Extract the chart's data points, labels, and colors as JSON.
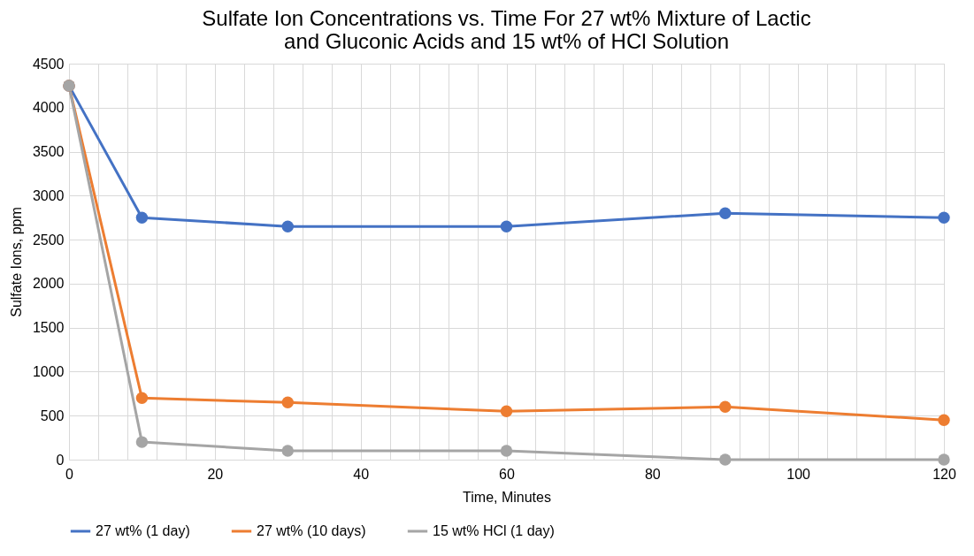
{
  "chart_data": {
    "type": "line",
    "title": "Sulfate Ion Concentrations vs. Time For 27 wt% Mixture of Lactic and Gluconic Acids and 15 wt% of HCl Solution",
    "xlabel": "Time, Minutes",
    "ylabel": "Sulfate Ions, ppm",
    "x": [
      0,
      10,
      30,
      60,
      90,
      120
    ],
    "series": [
      {
        "name": "27 wt% (1 day)",
        "color": "#4472c4",
        "values": [
          4250,
          2750,
          2650,
          2650,
          2800,
          2750
        ]
      },
      {
        "name": "27 wt% (10 days)",
        "color": "#ed7d31",
        "values": [
          4250,
          700,
          650,
          550,
          600,
          450
        ]
      },
      {
        "name": "15 wt% HCl (1 day)",
        "color": "#a5a5a5",
        "values": [
          4250,
          200,
          100,
          100,
          0,
          0
        ]
      }
    ],
    "xlim": [
      0,
      120
    ],
    "ylim": [
      0,
      4500
    ],
    "xticks": [
      0,
      {
        "value": 4,
        "label": null
      },
      {
        "value": 8,
        "label": null
      },
      {
        "value": 12,
        "label": null
      },
      {
        "value": 16,
        "label": null
      },
      20,
      {
        "value": 24,
        "label": null
      },
      {
        "value": 28,
        "label": null
      },
      {
        "value": 32,
        "label": null
      },
      {
        "value": 36,
        "label": null
      },
      40,
      {
        "value": 44,
        "label": null
      },
      {
        "value": 48,
        "label": null
      },
      {
        "value": 52,
        "label": null
      },
      {
        "value": 56,
        "label": null
      },
      60,
      {
        "value": 64,
        "label": null
      },
      {
        "value": 68,
        "label": null
      },
      {
        "value": 72,
        "label": null
      },
      {
        "value": 76,
        "label": null
      },
      80,
      {
        "value": 84,
        "label": null
      },
      {
        "value": 88,
        "label": null
      },
      {
        "value": 92,
        "label": null
      },
      {
        "value": 96,
        "label": null
      },
      100,
      {
        "value": 104,
        "label": null
      },
      {
        "value": 108,
        "label": null
      },
      {
        "value": 112,
        "label": null
      },
      {
        "value": 116,
        "label": null
      },
      120
    ],
    "yticks": [
      0,
      500,
      1000,
      1500,
      2000,
      2500,
      3000,
      3500,
      4000,
      4500
    ],
    "grid": true,
    "legend": "bottom",
    "marker": "circle",
    "line_style": "solid"
  }
}
